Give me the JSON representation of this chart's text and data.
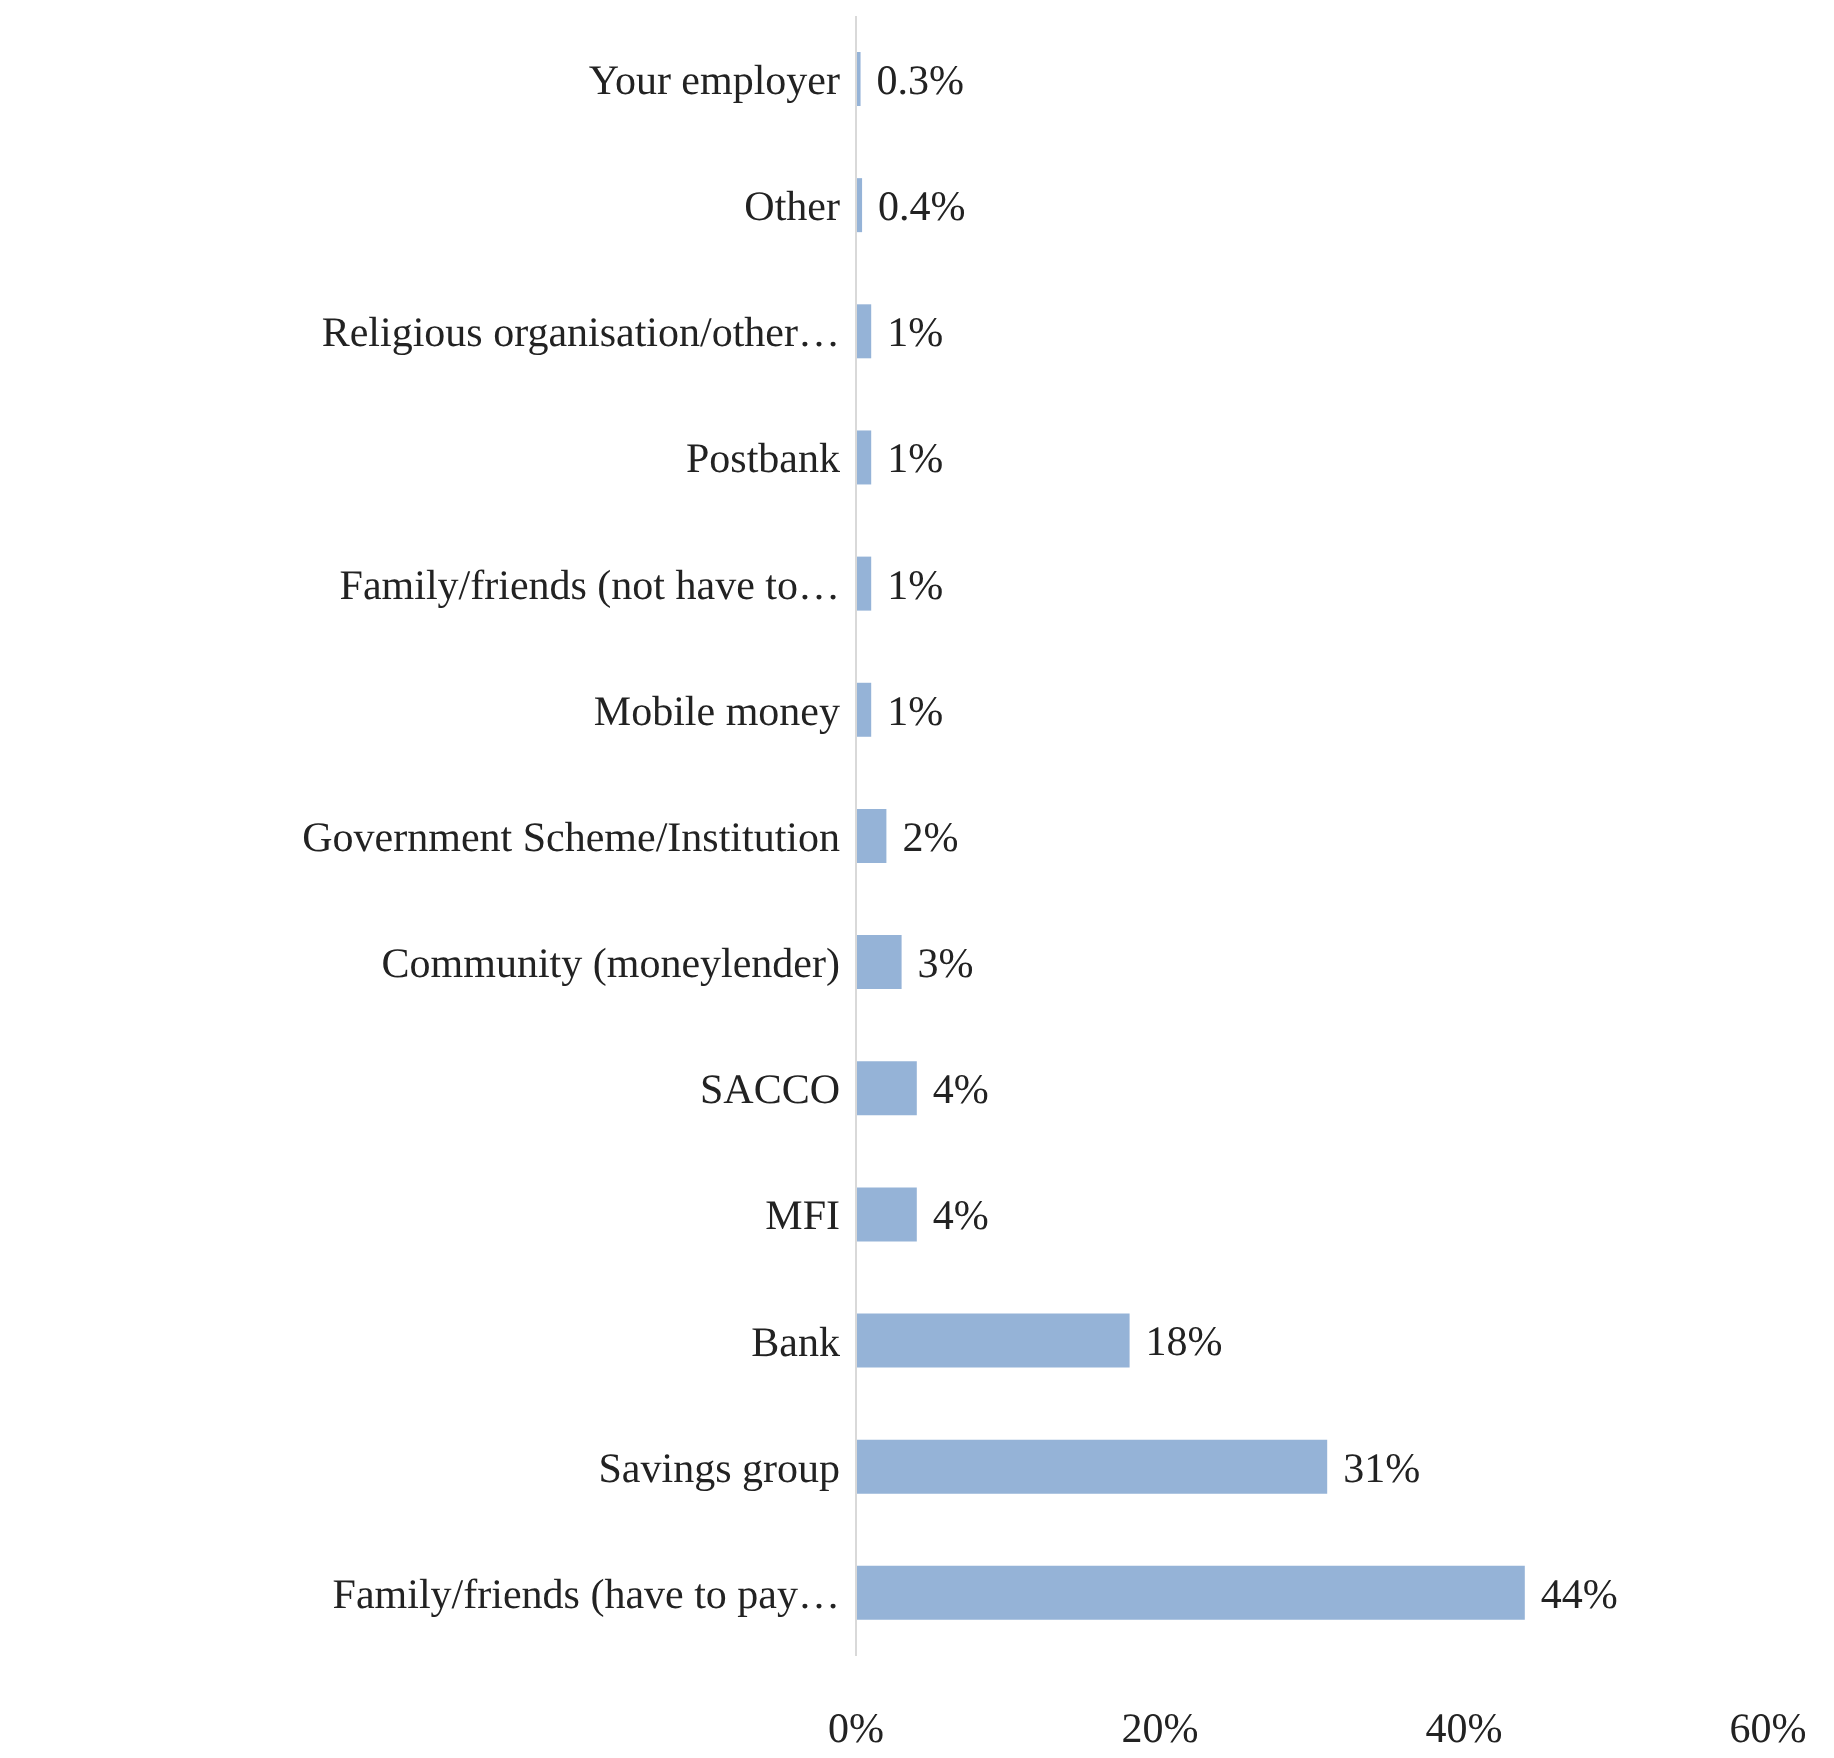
{
  "chart_data": {
    "type": "bar",
    "orientation": "horizontal",
    "categories": [
      "Your employer",
      "Other",
      "Religious organisation/other…",
      "Postbank",
      "Family/friends (not have to…",
      "Mobile money",
      "Government Scheme/Institution",
      "Community (moneylender)",
      "SACCO",
      "MFI",
      "Bank",
      "Savings group",
      "Family/friends (have to pay…"
    ],
    "values": [
      0.3,
      0.4,
      1,
      1,
      1,
      1,
      2,
      3,
      4,
      4,
      18,
      31,
      44
    ],
    "color": "#95b3d7",
    "value_labels": [
      "0.3%",
      "0.4%",
      "1%",
      "1%",
      "1%",
      "1%",
      "2%",
      "3%",
      "4%",
      "4%",
      "18%",
      "31%",
      "44%"
    ],
    "xlim": [
      0,
      60
    ],
    "xticks": [
      {
        "value": 0,
        "label": "0%"
      },
      {
        "value": 20,
        "label": "20%"
      },
      {
        "value": 40,
        "label": "40%"
      },
      {
        "value": 60,
        "label": "60%"
      }
    ],
    "grid": false
  }
}
